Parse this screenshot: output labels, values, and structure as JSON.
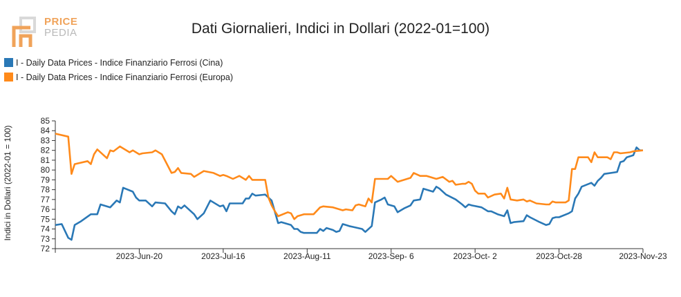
{
  "logo": {
    "line1": "PRICE",
    "line2": "PEDIA"
  },
  "colors": {
    "china": "#2a78b6",
    "europe": "#ff8a1a",
    "axis": "#333333"
  },
  "chart_data": {
    "type": "line",
    "title": "Dati Giornalieri, Indici in Dollari (2022-01=100)",
    "ylabel": "Indici in Dollari (2022-01 = 100)",
    "ylim": [
      72,
      85
    ],
    "yticks": [
      72,
      73,
      74,
      75,
      76,
      77,
      78,
      79,
      80,
      81,
      82,
      83,
      84,
      85
    ],
    "xticks": [
      "2023-Jun-20",
      "2023-Jul-16",
      "2023-Aug-11",
      "2023-Sep- 6",
      "2023-Oct- 2",
      "2023-Oct-28",
      "2023-Nov-23"
    ],
    "x_start": "2023-May-25",
    "x_end": "2023-Nov-23",
    "legend_position": "top-left",
    "grid": false,
    "series": [
      {
        "name": "I - Daily Data Prices - Indice Finanziario Ferrosi (Cina)",
        "color": "#2a78b6",
        "points": [
          [
            "2023-May-25",
            74.4
          ],
          [
            "2023-May-27",
            74.5
          ],
          [
            "2023-May-29",
            73.1
          ],
          [
            "2023-May-30",
            72.9
          ],
          [
            "2023-May-31",
            74.4
          ],
          [
            "2023-Jun-02",
            74.8
          ],
          [
            "2023-Jun-05",
            75.5
          ],
          [
            "2023-Jun-07",
            75.5
          ],
          [
            "2023-Jun-08",
            76.5
          ],
          [
            "2023-Jun-11",
            76.2
          ],
          [
            "2023-Jun-13",
            76.9
          ],
          [
            "2023-Jun-14",
            76.7
          ],
          [
            "2023-Jun-15",
            78.2
          ],
          [
            "2023-Jun-18",
            77.8
          ],
          [
            "2023-Jun-19",
            77.2
          ],
          [
            "2023-Jun-20",
            76.9
          ],
          [
            "2023-Jun-22",
            76.9
          ],
          [
            "2023-Jun-24",
            76.3
          ],
          [
            "2023-Jun-25",
            76.7
          ],
          [
            "2023-Jun-28",
            76.6
          ],
          [
            "2023-Jun-30",
            75.8
          ],
          [
            "2023-Jul-01",
            75.5
          ],
          [
            "2023-Jul-02",
            76.3
          ],
          [
            "2023-Jul-03",
            76.1
          ],
          [
            "2023-Jul-04",
            76.4
          ],
          [
            "2023-Jul-07",
            75.5
          ],
          [
            "2023-Jul-08",
            75.0
          ],
          [
            "2023-Jul-10",
            75.6
          ],
          [
            "2023-Jul-12",
            76.9
          ],
          [
            "2023-Jul-15",
            76.3
          ],
          [
            "2023-Jul-16",
            76.4
          ],
          [
            "2023-Jul-17",
            75.8
          ],
          [
            "2023-Jul-18",
            76.6
          ],
          [
            "2023-Jul-22",
            76.6
          ],
          [
            "2023-Jul-23",
            77.1
          ],
          [
            "2023-Jul-24",
            77.1
          ],
          [
            "2023-Jul-25",
            77.6
          ],
          [
            "2023-Jul-26",
            77.4
          ],
          [
            "2023-Jul-29",
            77.5
          ],
          [
            "2023-Jul-31",
            76.9
          ],
          [
            "2023-Aug-02",
            74.6
          ],
          [
            "2023-Aug-03",
            74.7
          ],
          [
            "2023-Aug-06",
            74.4
          ],
          [
            "2023-Aug-07",
            74.0
          ],
          [
            "2023-Aug-08",
            74.0
          ],
          [
            "2023-Aug-09",
            73.7
          ],
          [
            "2023-Aug-10",
            73.6
          ],
          [
            "2023-Aug-14",
            73.6
          ],
          [
            "2023-Aug-15",
            74.0
          ],
          [
            "2023-Aug-16",
            73.8
          ],
          [
            "2023-Aug-17",
            74.1
          ],
          [
            "2023-Aug-19",
            73.9
          ],
          [
            "2023-Aug-20",
            73.7
          ],
          [
            "2023-Aug-21",
            73.8
          ],
          [
            "2023-Aug-22",
            74.5
          ],
          [
            "2023-Aug-23",
            74.4
          ],
          [
            "2023-Aug-24",
            74.3
          ],
          [
            "2023-Aug-28",
            74.0
          ],
          [
            "2023-Aug-29",
            73.7
          ],
          [
            "2023-Aug-31",
            74.3
          ],
          [
            "2023-Sep-01",
            76.7
          ],
          [
            "2023-Sep-03",
            77.0
          ],
          [
            "2023-Sep-04",
            77.2
          ],
          [
            "2023-Sep-05",
            76.5
          ],
          [
            "2023-Sep-07",
            76.3
          ],
          [
            "2023-Sep-08",
            75.7
          ],
          [
            "2023-Sep-10",
            76.1
          ],
          [
            "2023-Sep-12",
            76.4
          ],
          [
            "2023-Sep-13",
            76.9
          ],
          [
            "2023-Sep-15",
            77.0
          ],
          [
            "2023-Sep-16",
            78.1
          ],
          [
            "2023-Sep-19",
            77.8
          ],
          [
            "2023-Sep-20",
            78.3
          ],
          [
            "2023-Sep-21",
            78.1
          ],
          [
            "2023-Sep-23",
            77.5
          ],
          [
            "2023-Sep-26",
            77.0
          ],
          [
            "2023-Sep-28",
            76.5
          ],
          [
            "2023-Sep-29",
            76.2
          ],
          [
            "2023-Sep-30",
            76.5
          ],
          [
            "2023-Oct-01",
            76.4
          ],
          [
            "2023-Oct-04",
            76.2
          ],
          [
            "2023-Oct-06",
            75.8
          ],
          [
            "2023-Oct-07",
            75.8
          ],
          [
            "2023-Oct-09",
            75.5
          ],
          [
            "2023-Oct-11",
            75.3
          ],
          [
            "2023-Oct-12",
            75.9
          ],
          [
            "2023-Oct-13",
            74.6
          ],
          [
            "2023-Oct-14",
            74.7
          ],
          [
            "2023-Oct-17",
            74.8
          ],
          [
            "2023-Oct-18",
            75.4
          ],
          [
            "2023-Oct-19",
            75.2
          ],
          [
            "2023-Oct-22",
            74.7
          ],
          [
            "2023-Oct-24",
            74.4
          ],
          [
            "2023-Oct-25",
            74.5
          ],
          [
            "2023-Oct-26",
            75.1
          ],
          [
            "2023-Oct-27",
            75.2
          ],
          [
            "2023-Oct-28",
            75.2
          ],
          [
            "2023-Oct-31",
            75.6
          ],
          [
            "2023-Nov-01",
            75.8
          ],
          [
            "2023-Nov-02",
            77.1
          ],
          [
            "2023-Nov-03",
            77.6
          ],
          [
            "2023-Nov-04",
            78.3
          ],
          [
            "2023-Nov-07",
            78.7
          ],
          [
            "2023-Nov-08",
            78.4
          ],
          [
            "2023-Nov-09",
            78.9
          ],
          [
            "2023-Nov-10",
            79.2
          ],
          [
            "2023-Nov-11",
            79.6
          ],
          [
            "2023-Nov-15",
            79.8
          ],
          [
            "2023-Nov-16",
            80.8
          ],
          [
            "2023-Nov-17",
            80.9
          ],
          [
            "2023-Nov-18",
            81.3
          ],
          [
            "2023-Nov-20",
            81.5
          ],
          [
            "2023-Nov-21",
            82.3
          ],
          [
            "2023-Nov-22",
            82.0
          ],
          [
            "2023-Nov-23",
            82.0
          ]
        ]
      },
      {
        "name": "I - Daily Data Prices - Indice Finanziario Ferrosi (Europa)",
        "color": "#ff8a1a",
        "points": [
          [
            "2023-May-25",
            83.7
          ],
          [
            "2023-May-29",
            83.4
          ],
          [
            "2023-May-30",
            79.6
          ],
          [
            "2023-May-31",
            80.6
          ],
          [
            "2023-Jun-04",
            80.9
          ],
          [
            "2023-Jun-05",
            80.6
          ],
          [
            "2023-Jun-06",
            81.6
          ],
          [
            "2023-Jun-07",
            82.1
          ],
          [
            "2023-Jun-10",
            81.2
          ],
          [
            "2023-Jun-11",
            82.0
          ],
          [
            "2023-Jun-12",
            81.9
          ],
          [
            "2023-Jun-14",
            82.4
          ],
          [
            "2023-Jun-17",
            81.8
          ],
          [
            "2023-Jun-18",
            82.0
          ],
          [
            "2023-Jun-20",
            81.6
          ],
          [
            "2023-Jun-21",
            81.7
          ],
          [
            "2023-Jun-24",
            81.8
          ],
          [
            "2023-Jun-25",
            82.0
          ],
          [
            "2023-Jun-27",
            81.6
          ],
          [
            "2023-Jun-30",
            79.7
          ],
          [
            "2023-Jul-01",
            79.8
          ],
          [
            "2023-Jul-02",
            80.2
          ],
          [
            "2023-Jul-03",
            79.7
          ],
          [
            "2023-Jul-06",
            79.6
          ],
          [
            "2023-Jul-07",
            79.3
          ],
          [
            "2023-Jul-10",
            79.9
          ],
          [
            "2023-Jul-13",
            79.7
          ],
          [
            "2023-Jul-15",
            79.4
          ],
          [
            "2023-Jul-16",
            79.5
          ],
          [
            "2023-Jul-17",
            79.4
          ],
          [
            "2023-Jul-19",
            79.1
          ],
          [
            "2023-Jul-21",
            79.4
          ],
          [
            "2023-Jul-23",
            79.0
          ],
          [
            "2023-Jul-24",
            79.4
          ],
          [
            "2023-Jul-25",
            79.0
          ],
          [
            "2023-Jul-29",
            79.0
          ],
          [
            "2023-Jul-30",
            77.2
          ],
          [
            "2023-Jul-31",
            76.4
          ],
          [
            "2023-Aug-01",
            75.8
          ],
          [
            "2023-Aug-02",
            75.3
          ],
          [
            "2023-Aug-05",
            75.7
          ],
          [
            "2023-Aug-06",
            75.6
          ],
          [
            "2023-Aug-07",
            75.0
          ],
          [
            "2023-Aug-08",
            75.3
          ],
          [
            "2023-Aug-10",
            75.5
          ],
          [
            "2023-Aug-13",
            75.5
          ],
          [
            "2023-Aug-15",
            76.2
          ],
          [
            "2023-Aug-16",
            76.3
          ],
          [
            "2023-Aug-19",
            76.2
          ],
          [
            "2023-Aug-22",
            75.9
          ],
          [
            "2023-Aug-23",
            76.0
          ],
          [
            "2023-Aug-25",
            75.9
          ],
          [
            "2023-Aug-26",
            76.4
          ],
          [
            "2023-Aug-27",
            76.5
          ],
          [
            "2023-Aug-28",
            76.4
          ],
          [
            "2023-Aug-29",
            76.3
          ],
          [
            "2023-Aug-30",
            77.1
          ],
          [
            "2023-Aug-31",
            76.7
          ],
          [
            "2023-Sep-01",
            79.1
          ],
          [
            "2023-Sep-05",
            79.1
          ],
          [
            "2023-Sep-06",
            79.4
          ],
          [
            "2023-Sep-08",
            78.8
          ],
          [
            "2023-Sep-12",
            79.2
          ],
          [
            "2023-Sep-13",
            79.7
          ],
          [
            "2023-Sep-15",
            79.4
          ],
          [
            "2023-Sep-17",
            79.4
          ],
          [
            "2023-Sep-20",
            79.1
          ],
          [
            "2023-Sep-22",
            79.3
          ],
          [
            "2023-Sep-24",
            78.8
          ],
          [
            "2023-Sep-25",
            78.9
          ],
          [
            "2023-Sep-26",
            78.5
          ],
          [
            "2023-Sep-28",
            78.6
          ],
          [
            "2023-Sep-29",
            78.6
          ],
          [
            "2023-Sep-30",
            78.8
          ],
          [
            "2023-Oct-01",
            78.6
          ],
          [
            "2023-Oct-02",
            77.9
          ],
          [
            "2023-Oct-03",
            77.6
          ],
          [
            "2023-Oct-05",
            77.6
          ],
          [
            "2023-Oct-06",
            77.2
          ],
          [
            "2023-Oct-08",
            77.5
          ],
          [
            "2023-Oct-10",
            77.6
          ],
          [
            "2023-Oct-11",
            77.1
          ],
          [
            "2023-Oct-12",
            78.2
          ],
          [
            "2023-Oct-13",
            77.0
          ],
          [
            "2023-Oct-15",
            76.9
          ],
          [
            "2023-Oct-17",
            77.0
          ],
          [
            "2023-Oct-18",
            76.8
          ],
          [
            "2023-Oct-19",
            76.9
          ],
          [
            "2023-Oct-21",
            76.6
          ],
          [
            "2023-Oct-24",
            76.5
          ],
          [
            "2023-Oct-25",
            76.5
          ],
          [
            "2023-Oct-26",
            76.8
          ],
          [
            "2023-Oct-27",
            76.7
          ],
          [
            "2023-Oct-30",
            76.7
          ],
          [
            "2023-Oct-31",
            76.9
          ],
          [
            "2023-Nov-01",
            80.1
          ],
          [
            "2023-Nov-02",
            80.1
          ],
          [
            "2023-Nov-03",
            81.3
          ],
          [
            "2023-Nov-06",
            81.3
          ],
          [
            "2023-Nov-07",
            80.8
          ],
          [
            "2023-Nov-08",
            81.8
          ],
          [
            "2023-Nov-09",
            81.3
          ],
          [
            "2023-Nov-12",
            81.3
          ],
          [
            "2023-Nov-13",
            81.1
          ],
          [
            "2023-Nov-14",
            81.8
          ],
          [
            "2023-Nov-15",
            81.8
          ],
          [
            "2023-Nov-16",
            81.7
          ],
          [
            "2023-Nov-19",
            81.8
          ],
          [
            "2023-Nov-20",
            81.9
          ],
          [
            "2023-Nov-23",
            82.0
          ]
        ]
      }
    ]
  }
}
